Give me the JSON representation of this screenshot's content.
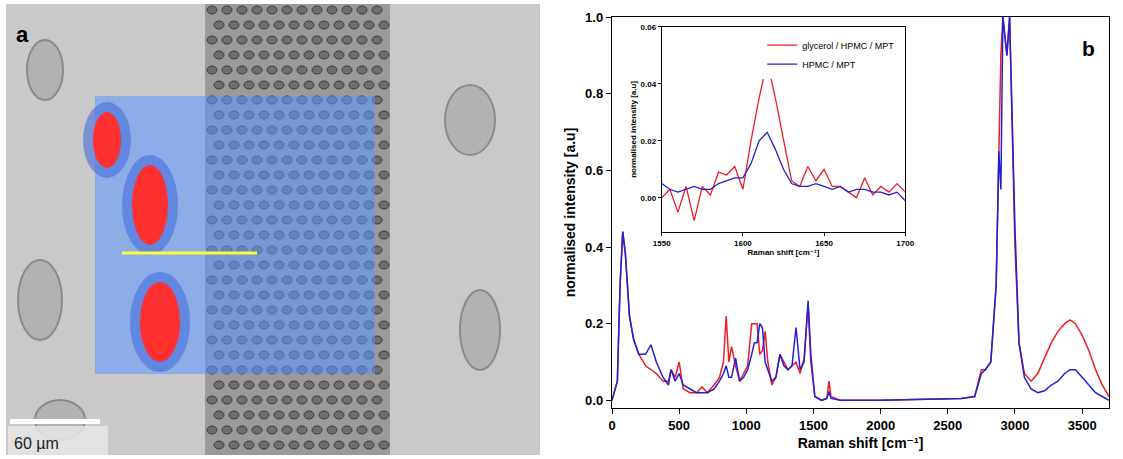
{
  "image_panel": {
    "panel_label": "a",
    "scale_bar": "60 µm"
  },
  "chart_data": [
    {
      "type": "line",
      "panel_label": "b",
      "x_label": "Raman shift [cm⁻¹]",
      "y_label": "normalised intensity [a.u]",
      "x": [
        0,
        40,
        60,
        80,
        100,
        130,
        160,
        200,
        250,
        290,
        330,
        380,
        420,
        440,
        470,
        500,
        530,
        580,
        630,
        670,
        710,
        760,
        800,
        830,
        850,
        870,
        890,
        920,
        950,
        980,
        1010,
        1040,
        1060,
        1080,
        1100,
        1120,
        1140,
        1160,
        1190,
        1220,
        1250,
        1280,
        1310,
        1340,
        1370,
        1400,
        1430,
        1460,
        1480,
        1510,
        1560,
        1600,
        1615,
        1630,
        1700,
        2000,
        2300,
        2600,
        2700,
        2750,
        2780,
        2820,
        2860,
        2880,
        2895,
        2910,
        2925,
        2940,
        2960,
        2980,
        3000,
        3030,
        3070,
        3120,
        3170,
        3220,
        3270,
        3320,
        3370,
        3410,
        3450,
        3500,
        3550,
        3600,
        3650,
        3700
      ],
      "series": [
        {
          "name": "glycerol / HPMC / MPT",
          "color": "#ee1c25",
          "values": [
            0,
            0.05,
            0.3,
            0.44,
            0.38,
            0.22,
            0.16,
            0.12,
            0.09,
            0.08,
            0.07,
            0.05,
            0.05,
            0.08,
            0.06,
            0.1,
            0.03,
            0.02,
            0.02,
            0.035,
            0.02,
            0.04,
            0.06,
            0.1,
            0.22,
            0.1,
            0.14,
            0.09,
            0.05,
            0.07,
            0.09,
            0.2,
            0.2,
            0.2,
            0.12,
            0.13,
            0.18,
            0.1,
            0.04,
            0.06,
            0.12,
            0.1,
            0.08,
            0.09,
            0.1,
            0.07,
            0.11,
            0.25,
            0.1,
            0.01,
            0,
            0.005,
            0.05,
            0.01,
            0,
            0,
            0.003,
            0.005,
            0.01,
            0.08,
            0.08,
            0.1,
            0.3,
            0.7,
            0.9,
            1.0,
            0.95,
            0.9,
            1.0,
            0.7,
            0.4,
            0.15,
            0.07,
            0.05,
            0.07,
            0.11,
            0.15,
            0.18,
            0.2,
            0.21,
            0.2,
            0.17,
            0.13,
            0.08,
            0.04,
            0.01
          ]
        },
        {
          "name": "HPMC / MPT",
          "color": "#2020d8",
          "values": [
            0,
            0.05,
            0.3,
            0.44,
            0.38,
            0.22,
            0.16,
            0.12,
            0.12,
            0.145,
            0.1,
            0.06,
            0.04,
            0.08,
            0.05,
            0.07,
            0.04,
            0.03,
            0.02,
            0.02,
            0.02,
            0.03,
            0.05,
            0.07,
            0.09,
            0.06,
            0.06,
            0.11,
            0.05,
            0.06,
            0.08,
            0.12,
            0.15,
            0.15,
            0.2,
            0.19,
            0.1,
            0.08,
            0.05,
            0.06,
            0.12,
            0.09,
            0.08,
            0.09,
            0.19,
            0.08,
            0.1,
            0.26,
            0.12,
            0.01,
            0,
            0.005,
            0.023,
            0.005,
            0,
            0,
            0.003,
            0.005,
            0.01,
            0.07,
            0.08,
            0.1,
            0.3,
            0.65,
            0.55,
            1.0,
            0.95,
            0.9,
            1.0,
            0.75,
            0.45,
            0.15,
            0.06,
            0.03,
            0.02,
            0.025,
            0.04,
            0.05,
            0.07,
            0.08,
            0.08,
            0.06,
            0.04,
            0.02,
            0.01,
            0.0
          ]
        }
      ],
      "xlim": [
        0,
        3700
      ],
      "xticks": [
        0,
        500,
        1000,
        1500,
        2000,
        2500,
        3000,
        3500
      ],
      "ylim": [
        -0.02,
        1.0
      ],
      "yticks": [
        {
          "value": 0,
          "label": "0.0"
        },
        {
          "value": 0.2,
          "label": "0.2"
        },
        {
          "value": 0.4,
          "label": "0.4"
        },
        {
          "value": 0.6,
          "label": "0.6"
        },
        {
          "value": 0.8,
          "label": "0.8"
        },
        {
          "value": 1.0,
          "label": "1.0"
        }
      ]
    },
    {
      "type": "line",
      "x_label": "Raman shift [cm⁻¹]",
      "y_label": "normalised intensity [a.u]",
      "x": [
        1550,
        1555,
        1560,
        1565,
        1570,
        1575,
        1580,
        1585,
        1590,
        1595,
        1600,
        1605,
        1610,
        1615,
        1620,
        1625,
        1630,
        1635,
        1640,
        1645,
        1650,
        1655,
        1660,
        1665,
        1670,
        1675,
        1680,
        1685,
        1690,
        1695,
        1700
      ],
      "series": [
        {
          "name": "glycerol / HPMC / MPT",
          "color": "#ee1c25",
          "values": [
            0.0,
            0.003,
            -0.005,
            0.004,
            -0.008,
            0.004,
            0.001,
            0.009,
            0.008,
            0.011,
            0.003,
            0.02,
            0.035,
            0.048,
            0.035,
            0.02,
            0.006,
            0.004,
            0.011,
            0.006,
            0.01,
            0.004,
            0.004,
            0.002,
            0.0,
            0.007,
            0.001,
            0.004,
            0.002,
            0.005,
            0.002
          ]
        },
        {
          "name": "HPMC / MPT",
          "color": "#2020d8",
          "values": [
            0.005,
            0.003,
            0.002,
            0.003,
            0.004,
            0.003,
            0.003,
            0.005,
            0.006,
            0.007,
            0.007,
            0.012,
            0.02,
            0.023,
            0.017,
            0.01,
            0.005,
            0.004,
            0.004,
            0.005,
            0.004,
            0.003,
            0.004,
            0.002,
            0.003,
            0.003,
            0.002,
            0.002,
            0.001,
            0.002,
            -0.001
          ]
        }
      ],
      "xlim": [
        1550,
        1700
      ],
      "xticks": [
        1550,
        1600,
        1650,
        1700
      ],
      "ylim": [
        -0.012,
        0.06
      ],
      "yticks": [
        {
          "value": 0,
          "label": "0.00"
        },
        {
          "value": 0.02,
          "label": "0.02"
        },
        {
          "value": 0.04,
          "label": "0.04"
        },
        {
          "value": 0.06,
          "label": "0.06"
        }
      ],
      "legend": "upper right"
    }
  ]
}
